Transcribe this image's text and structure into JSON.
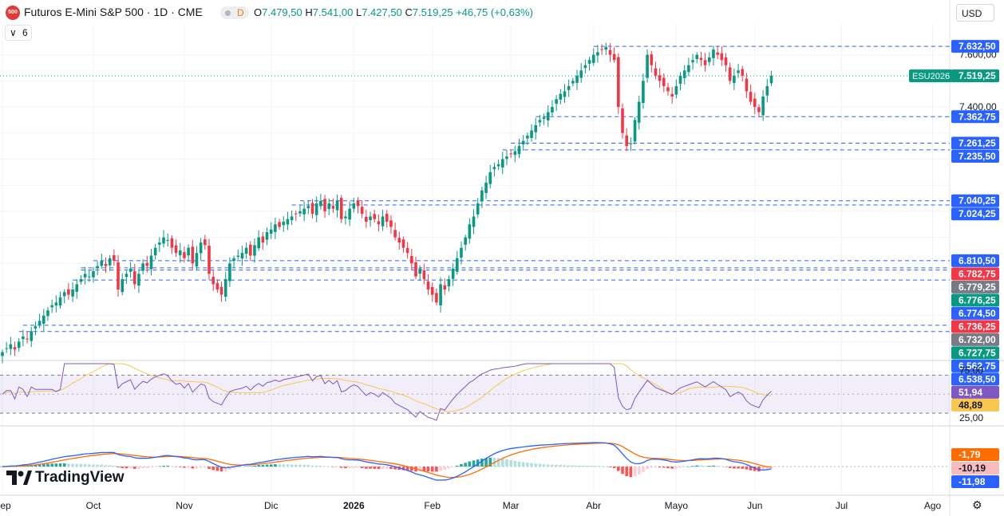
{
  "header": {
    "logo_text": "500",
    "title": "Futuros E-Mini S&P 500 · 1D · CME",
    "interval_badge": "D",
    "ohlc": [
      {
        "k": "O",
        "v": "7.479,50"
      },
      {
        "k": "H",
        "v": "7.541,00"
      },
      {
        "k": "L",
        "v": "7.427,50"
      },
      {
        "k": "C",
        "v": "7.519,25"
      }
    ],
    "change": "+46,75 (+0,63%)",
    "currency": "USD",
    "indicator_count": "6",
    "collapse_icon": "chevron-down-icon"
  },
  "branding": {
    "name": "TradingView"
  },
  "colors": {
    "up": "#089981",
    "down": "#f23645",
    "level": "#2962ff",
    "rsi_line": "#7e57c2",
    "rsi_ma": "#f9c74f",
    "macd_line": "#2962ff",
    "signal_line": "#ff6d00"
  },
  "chart_data": [
    {
      "type": "candlestick",
      "symbol": "ESU2026",
      "last_price": "7.519,25",
      "ylim": [
        6440,
        7700
      ],
      "price_ticks": [
        {
          "value": 7600,
          "label": "7.600,00"
        },
        {
          "value": 7400,
          "label": "7.400,00"
        }
      ],
      "x_labels": [
        "Sep",
        "Oct",
        "Nov",
        "Dic",
        "2026",
        "Feb",
        "Mar",
        "Abr",
        "Mayo",
        "Jun",
        "Jul",
        "Ago"
      ],
      "x_label_bold": "2026",
      "x_label_index": [
        0,
        22,
        44,
        65,
        85,
        104,
        123,
        143,
        163,
        182,
        203,
        225
      ],
      "price_tags": [
        {
          "label": "7.632,50",
          "value": 7632.5,
          "color": "#2962ff"
        },
        {
          "label": "7.362,75",
          "value": 7362.75,
          "color": "#2962ff"
        },
        {
          "label": "7.261,25",
          "value": 7261.25,
          "color": "#2962ff"
        },
        {
          "label": "7.235,50",
          "value": 7235.5,
          "color": "#2962ff"
        },
        {
          "label": "7.040,25",
          "value": 7040.25,
          "color": "#2962ff"
        },
        {
          "label": "7.024,25",
          "value": 7024.25,
          "color": "#2962ff"
        },
        {
          "label": "6.810,50",
          "value": 6810.5,
          "color": "#2962ff"
        },
        {
          "label": "6.782,75",
          "value": 6782.75,
          "color": "#f23645"
        },
        {
          "label": "6.779,25",
          "value": 6779.25,
          "color": "#787b86"
        },
        {
          "label": "6.776,25",
          "value": 6776.25,
          "color": "#089981"
        },
        {
          "label": "6.774,50",
          "value": 6774.5,
          "color": "#2962ff"
        },
        {
          "label": "6.736,25",
          "value": 6736.25,
          "color": "#f23645"
        },
        {
          "label": "6.732,00",
          "value": 6732.0,
          "color": "#787b86"
        },
        {
          "label": "6.727,75",
          "value": 6727.75,
          "color": "#089981"
        },
        {
          "label": "6.562,75",
          "value": 6562.75,
          "color": "#2962ff"
        },
        {
          "label": "6.538,50",
          "value": 6538.5,
          "color": "#2962ff"
        }
      ],
      "levels": [
        7632.5,
        7362.75,
        7261.25,
        7235.5,
        7040.25,
        7024.25,
        6810.5,
        6782.75,
        6774.5,
        6736.25,
        6562.75,
        6538.5
      ],
      "close": [
        6460,
        6475,
        6490,
        6470,
        6500,
        6520,
        6510,
        6540,
        6560,
        6580,
        6600,
        6620,
        6640,
        6650,
        6670,
        6690,
        6680,
        6700,
        6720,
        6740,
        6760,
        6750,
        6770,
        6790,
        6810,
        6790,
        6820,
        6810,
        6700,
        6740,
        6760,
        6780,
        6720,
        6760,
        6800,
        6790,
        6830,
        6860,
        6880,
        6900,
        6890,
        6860,
        6840,
        6850,
        6820,
        6860,
        6800,
        6840,
        6880,
        6870,
        6760,
        6720,
        6700,
        6680,
        6740,
        6800,
        6820,
        6830,
        6840,
        6860,
        6830,
        6870,
        6900,
        6880,
        6920,
        6930,
        6950,
        6940,
        6960,
        6970,
        6980,
        6990,
        7000,
        7010,
        7020,
        6990,
        7030,
        7040,
        7000,
        7030,
        7010,
        7040,
        6970,
        6980,
        7010,
        7030,
        7020,
        6990,
        6960,
        6980,
        6970,
        6950,
        6980,
        6960,
        6940,
        6900,
        6880,
        6860,
        6840,
        6800,
        6750,
        6780,
        6740,
        6700,
        6680,
        6650,
        6720,
        6700,
        6740,
        6780,
        6820,
        6860,
        6900,
        6950,
        6980,
        7030,
        7080,
        7110,
        7150,
        7170,
        7180,
        7200,
        7210,
        7220,
        7230,
        7250,
        7270,
        7290,
        7310,
        7330,
        7350,
        7360,
        7380,
        7400,
        7430,
        7450,
        7460,
        7480,
        7500,
        7520,
        7540,
        7560,
        7580,
        7600,
        7610,
        7620,
        7630,
        7600,
        7580,
        7400,
        7300,
        7250,
        7260,
        7350,
        7420,
        7500,
        7600,
        7560,
        7520,
        7500,
        7480,
        7460,
        7440,
        7480,
        7520,
        7540,
        7560,
        7580,
        7600,
        7580,
        7560,
        7590,
        7620,
        7600,
        7580,
        7560,
        7500,
        7520,
        7540,
        7520,
        7460,
        7420,
        7400,
        7380,
        7440,
        7480,
        7519.25
      ]
    },
    {
      "type": "line",
      "indicator": "RSI",
      "ylim": [
        20,
        82
      ],
      "ticks": [
        {
          "value": 75,
          "label": "75,00"
        },
        {
          "value": 25,
          "label": "25,00"
        }
      ],
      "bands": [
        70,
        30
      ],
      "tags": [
        {
          "label": "51,94",
          "value": 51.94,
          "color": "#7e57c2"
        },
        {
          "label": "48,89",
          "value": 48.89,
          "color": "#f9c74f"
        }
      ]
    },
    {
      "type": "histogram+line",
      "indicator": "MACD",
      "ylim": [
        -140,
        200
      ],
      "tags": [
        {
          "label": "-1,79",
          "value": -1.79,
          "color": "#ff6d00"
        },
        {
          "label": "-10,19",
          "value": -10.19,
          "color": "#f8bbbf"
        },
        {
          "label": "-11,98",
          "value": -11.98,
          "color": "#2962ff"
        }
      ]
    }
  ]
}
